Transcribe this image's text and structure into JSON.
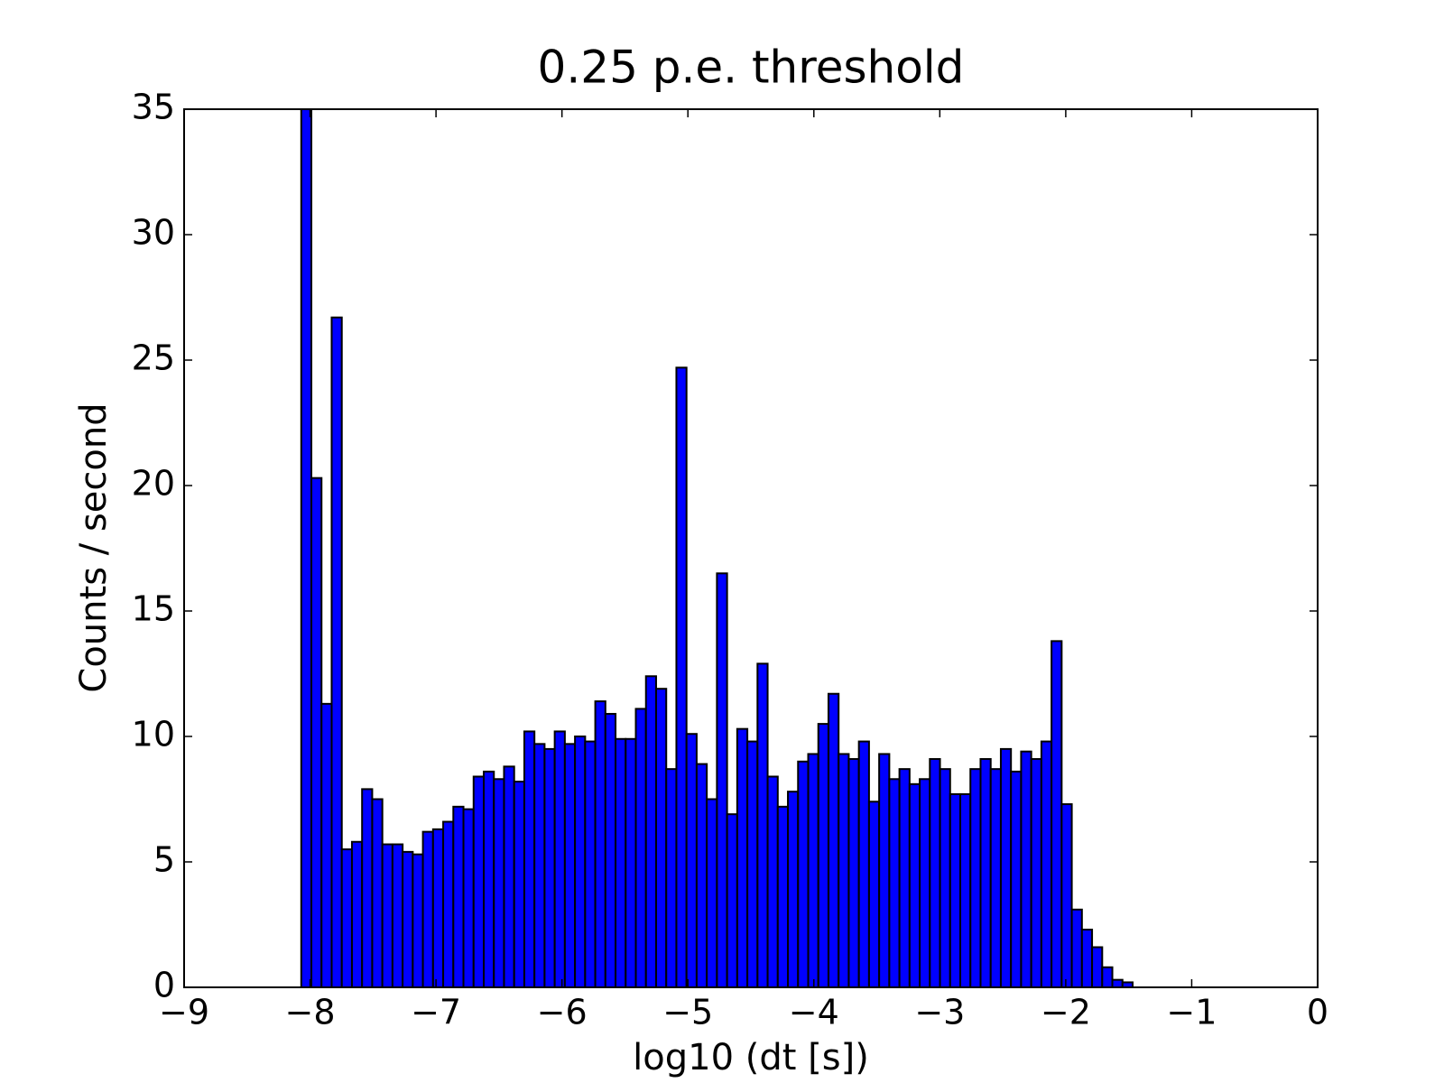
{
  "chart_data": {
    "type": "histogram",
    "title": "0.25 p.e. threshold",
    "x_label": "log10 (dt [s])",
    "y_label": "Counts / second",
    "color": "#0000ff",
    "edge_color": "#000000",
    "bins": [
      -8.07,
      -7.9895,
      -7.909,
      -7.8285,
      -7.748,
      -7.6675,
      -7.587,
      -7.5065,
      -7.426,
      -7.3455,
      -7.265,
      -7.1845,
      -7.104,
      -7.0235,
      -6.943,
      -6.8625,
      -6.782,
      -6.7015,
      -6.621,
      -6.5405,
      -6.46,
      -6.3795,
      -6.299,
      -6.2185,
      -6.138,
      -6.0575,
      -5.977,
      -5.8965,
      -5.816,
      -5.7355,
      -5.655,
      -5.5745,
      -5.494,
      -5.4135,
      -5.333,
      -5.2525,
      -5.172,
      -5.0915,
      -5.011,
      -4.9305,
      -4.85,
      -4.7695,
      -4.689,
      -4.6085,
      -4.528,
      -4.4475,
      -4.367,
      -4.2865,
      -4.206,
      -4.1255,
      -4.045,
      -3.9645,
      -3.884,
      -3.8035,
      -3.723,
      -3.6425,
      -3.562,
      -3.4815,
      -3.401,
      -3.3205,
      -3.24,
      -3.1595,
      -3.079,
      -2.9985,
      -2.918,
      -2.8375,
      -2.757,
      -2.6765,
      -2.596,
      -2.5155,
      -2.435,
      -2.3545,
      -2.274,
      -2.1935,
      -2.113,
      -2.0325,
      -1.952,
      -1.8715,
      -1.791,
      -1.7105,
      -1.63,
      -1.5495,
      -1.469
    ],
    "values": [
      35,
      20.3,
      11.3,
      26.7,
      5.5,
      5.8,
      7.9,
      7.5,
      5.7,
      5.7,
      5.4,
      5.3,
      6.2,
      6.3,
      6.6,
      7.2,
      7.1,
      8.4,
      8.6,
      8.3,
      8.8,
      8.2,
      10.2,
      9.7,
      9.5,
      10.2,
      9.7,
      10.0,
      9.8,
      11.4,
      10.9,
      9.9,
      9.9,
      11.1,
      12.4,
      11.9,
      8.7,
      24.7,
      10.1,
      8.9,
      7.5,
      16.5,
      6.9,
      10.3,
      9.8,
      12.9,
      8.4,
      7.2,
      7.8,
      9.0,
      9.3,
      10.5,
      11.7,
      9.3,
      9.1,
      9.8,
      7.4,
      9.3,
      8.3,
      8.7,
      8.1,
      8.3,
      9.1,
      8.7,
      7.7,
      7.7,
      8.7,
      9.1,
      8.7,
      9.5,
      8.6,
      9.4,
      9.1,
      9.8,
      13.8,
      7.3,
      3.1,
      2.3,
      1.6,
      0.8,
      0.3,
      0.2
    ],
    "xlim": [
      -9,
      0
    ],
    "ylim": [
      0,
      35
    ],
    "xticks": [
      {
        "value": -9,
        "label": "−9"
      },
      {
        "value": -8,
        "label": "−8"
      },
      {
        "value": -7,
        "label": "−7"
      },
      {
        "value": -6,
        "label": "−6"
      },
      {
        "value": -5,
        "label": "−5"
      },
      {
        "value": -4,
        "label": "−4"
      },
      {
        "value": -3,
        "label": "−3"
      },
      {
        "value": -2,
        "label": "−2"
      },
      {
        "value": -1,
        "label": "−1"
      },
      0
    ],
    "yticks": [
      0,
      5,
      10,
      15,
      20,
      25,
      30,
      35
    ],
    "grid": false
  }
}
